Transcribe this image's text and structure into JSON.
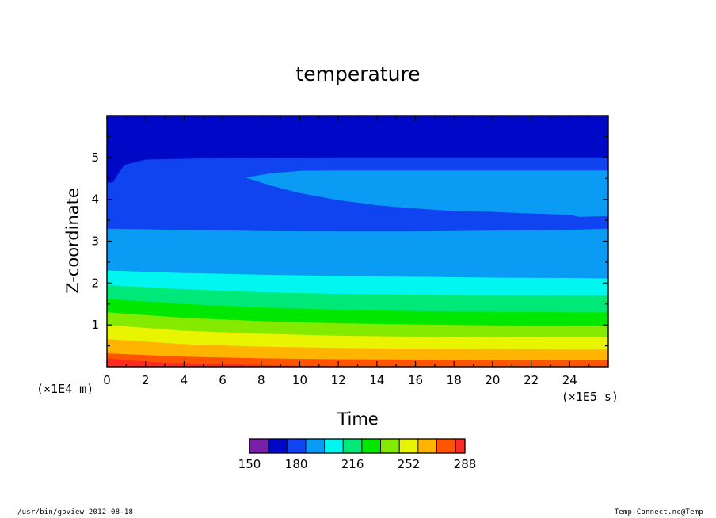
{
  "chart_data": {
    "type": "filled-contour",
    "title": "temperature",
    "xlabel": "Time",
    "ylabel": "Z-coordinate",
    "x_unit": "(×1E5 s)",
    "y_unit": "(×1E4 m)",
    "xlim": [
      0,
      26
    ],
    "ylim": [
      0,
      6
    ],
    "x_ticks": [
      0,
      2,
      4,
      6,
      8,
      10,
      12,
      14,
      16,
      18,
      20,
      22,
      24
    ],
    "x_tick_labels": [
      "0",
      "2",
      "4",
      "6",
      "8",
      "10",
      "12",
      "14",
      "16",
      "18",
      "20",
      "22",
      "24"
    ],
    "y_ticks": [
      1,
      2,
      3,
      4,
      5
    ],
    "y_tick_labels": [
      "1",
      "2",
      "3",
      "4",
      "5"
    ],
    "contour_levels": [
      150,
      162,
      174,
      186,
      198,
      210,
      222,
      234,
      246,
      258,
      270,
      282,
      288
    ],
    "colors": [
      "#7a1fa8",
      "#0008c8",
      "#1044f0",
      "#0a9cf4",
      "#00f6ee",
      "#00e878",
      "#00e800",
      "#84ea00",
      "#e8f400",
      "#ffb400",
      "#ff5400",
      "#ff2a24"
    ],
    "colorbar_labels": [
      "150",
      "180",
      "216",
      "252",
      "288"
    ],
    "fields": [
      {
        "level_index": 2,
        "boundary": [
          [
            0,
            4.4
          ],
          [
            0.3,
            4.4
          ],
          [
            0.6,
            4.62
          ],
          [
            0.9,
            4.82
          ],
          [
            2,
            4.95
          ],
          [
            6,
            4.99
          ],
          [
            12,
            5.0
          ],
          [
            20,
            5.0
          ],
          [
            26,
            5.0
          ]
        ]
      },
      {
        "level_index": 3,
        "boundary": [
          [
            0,
            3.3
          ],
          [
            4,
            3.27
          ],
          [
            8,
            3.24
          ],
          [
            12,
            3.23
          ],
          [
            16,
            3.23
          ],
          [
            20,
            3.25
          ],
          [
            24,
            3.27
          ],
          [
            26,
            3.3
          ]
        ]
      },
      {
        "level_index": 4,
        "boundary": [
          [
            0,
            2.3
          ],
          [
            4,
            2.24
          ],
          [
            8,
            2.2
          ],
          [
            12,
            2.17
          ],
          [
            16,
            2.15
          ],
          [
            20,
            2.13
          ],
          [
            24,
            2.12
          ],
          [
            26,
            2.11
          ]
        ]
      },
      {
        "level_index": 5,
        "boundary": [
          [
            0,
            1.95
          ],
          [
            4,
            1.85
          ],
          [
            8,
            1.78
          ],
          [
            12,
            1.74
          ],
          [
            16,
            1.72
          ],
          [
            20,
            1.71
          ],
          [
            24,
            1.7
          ],
          [
            26,
            1.7
          ]
        ]
      },
      {
        "level_index": 6,
        "boundary": [
          [
            0,
            1.62
          ],
          [
            4,
            1.5
          ],
          [
            8,
            1.42
          ],
          [
            12,
            1.36
          ],
          [
            16,
            1.33
          ],
          [
            20,
            1.31
          ],
          [
            24,
            1.3
          ],
          [
            26,
            1.3
          ]
        ]
      },
      {
        "level_index": 7,
        "boundary": [
          [
            0,
            1.3
          ],
          [
            4,
            1.17
          ],
          [
            8,
            1.09
          ],
          [
            12,
            1.04
          ],
          [
            16,
            1.01
          ],
          [
            20,
            0.99
          ],
          [
            24,
            0.98
          ],
          [
            26,
            0.98
          ]
        ]
      },
      {
        "level_index": 8,
        "boundary": [
          [
            0,
            1.0
          ],
          [
            4,
            0.86
          ],
          [
            8,
            0.79
          ],
          [
            12,
            0.74
          ],
          [
            16,
            0.72
          ],
          [
            20,
            0.71
          ],
          [
            24,
            0.7
          ],
          [
            26,
            0.7
          ]
        ]
      },
      {
        "level_index": 9,
        "boundary": [
          [
            0,
            0.66
          ],
          [
            4,
            0.54
          ],
          [
            8,
            0.48
          ],
          [
            12,
            0.45
          ],
          [
            16,
            0.43
          ],
          [
            20,
            0.42
          ],
          [
            24,
            0.41
          ],
          [
            26,
            0.41
          ]
        ]
      },
      {
        "level_index": 10,
        "boundary": [
          [
            0,
            0.32
          ],
          [
            4,
            0.24
          ],
          [
            8,
            0.2
          ],
          [
            12,
            0.18
          ],
          [
            16,
            0.17
          ],
          [
            20,
            0.16
          ],
          [
            24,
            0.16
          ],
          [
            26,
            0.16
          ]
        ]
      },
      {
        "level_index": 11,
        "boundary": [
          [
            0,
            0.2
          ],
          [
            1.5,
            0.14
          ],
          [
            3,
            0.1
          ],
          [
            6,
            0.06
          ],
          [
            9,
            0.03
          ],
          [
            12,
            0.01
          ],
          [
            13,
            0.0
          ],
          [
            26,
            0.0
          ]
        ]
      }
    ],
    "tongue": {
      "level_index": 3,
      "upper": [
        [
          7.2,
          4.52
        ],
        [
          8.5,
          4.62
        ],
        [
          10,
          4.68
        ],
        [
          12,
          4.69
        ],
        [
          16,
          4.69
        ],
        [
          20,
          4.69
        ],
        [
          24,
          4.69
        ],
        [
          26,
          4.69
        ]
      ],
      "lower": [
        [
          26,
          3.6
        ],
        [
          24.5,
          3.58
        ],
        [
          24,
          3.63
        ],
        [
          22,
          3.66
        ],
        [
          20,
          3.7
        ],
        [
          18,
          3.72
        ],
        [
          16,
          3.78
        ],
        [
          14,
          3.86
        ],
        [
          12,
          3.98
        ],
        [
          10,
          4.15
        ],
        [
          8.5,
          4.33
        ],
        [
          7.2,
          4.52
        ]
      ]
    }
  },
  "footer": {
    "left": "/usr/bin/gpview  2012-08-18",
    "right": "Temp-Connect.nc@Temp"
  }
}
